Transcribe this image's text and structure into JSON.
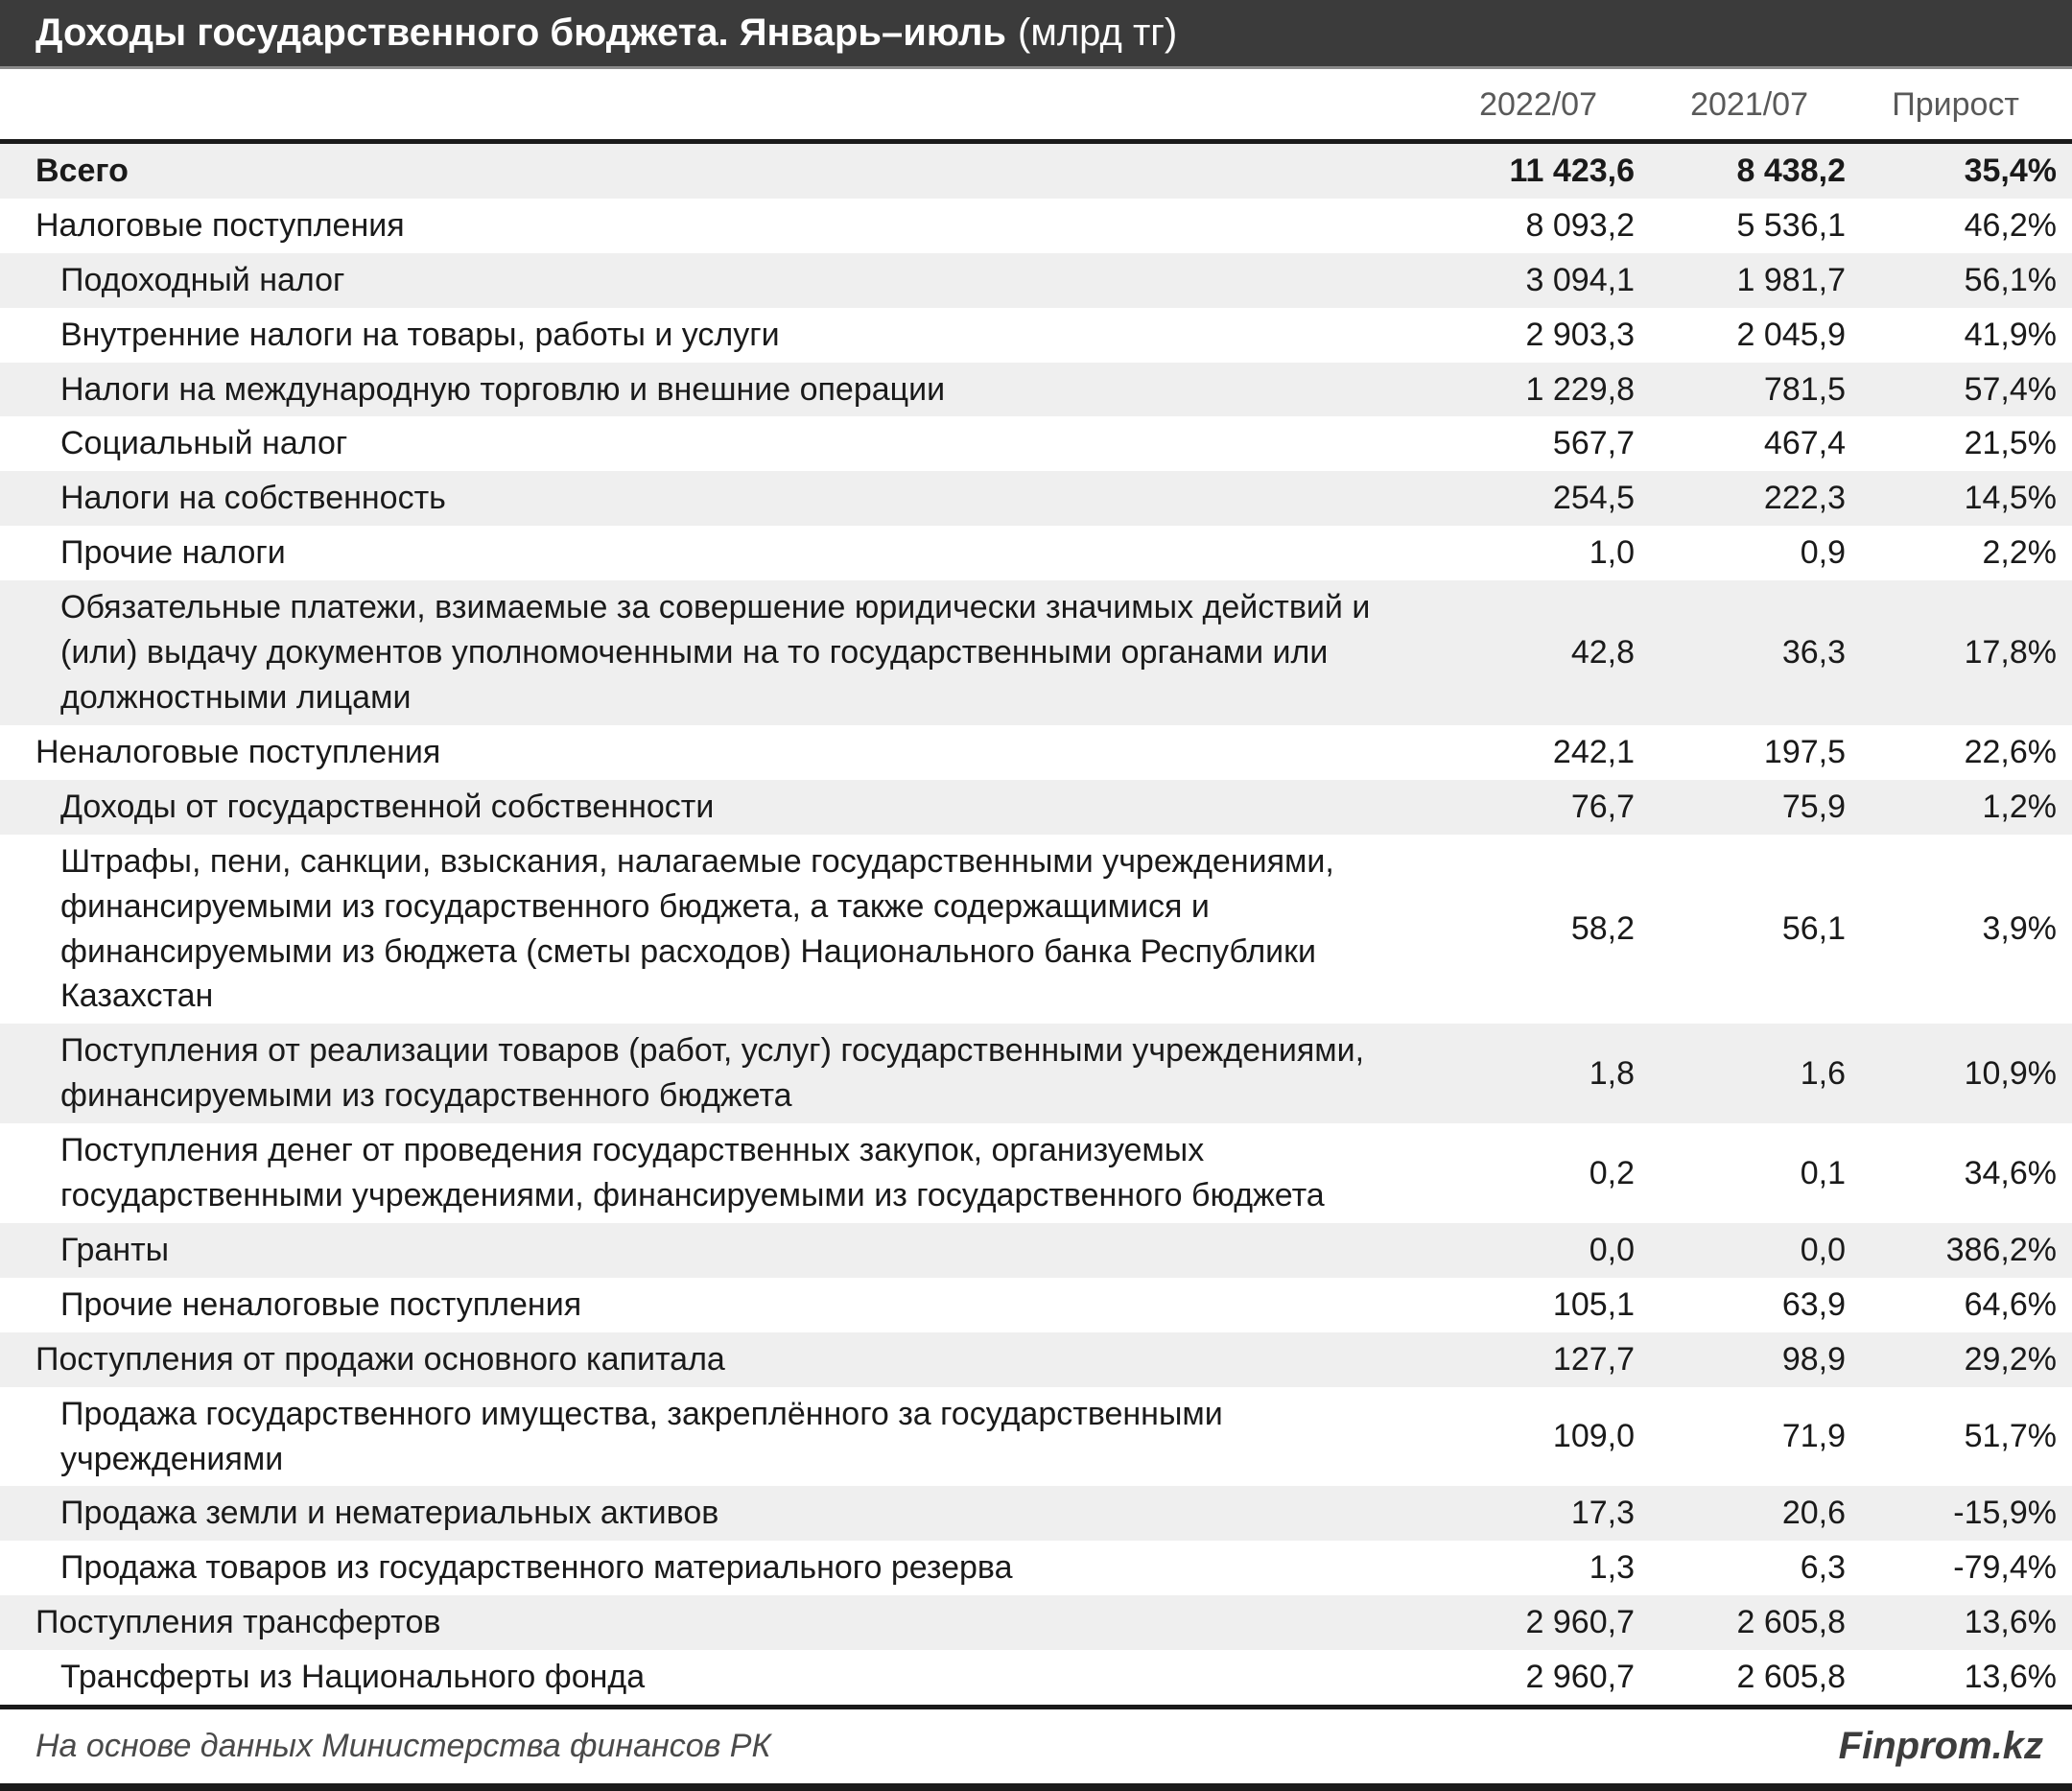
{
  "title": {
    "main": "Доходы государственного бюджета. Январь–июль",
    "unit": "(млрд тг)"
  },
  "footer": {
    "source": "На основе данных Министерства финансов РК",
    "brand": "Finprom.kz"
  },
  "chart_data": {
    "type": "table",
    "title": "Доходы государственного бюджета. Январь–июль (млрд тг)",
    "columns": [
      "2022/07",
      "2021/07",
      "Прирост"
    ],
    "rows": [
      {
        "label": "Всего",
        "values": [
          "11 423,6",
          "8 438,2",
          "35,4%"
        ],
        "values_num": [
          11423.6,
          8438.2,
          35.4
        ],
        "level": 0,
        "emphasis": true
      },
      {
        "label": "Налоговые поступления",
        "values": [
          "8 093,2",
          "5 536,1",
          "46,2%"
        ],
        "values_num": [
          8093.2,
          5536.1,
          46.2
        ],
        "level": 0,
        "emphasis": false
      },
      {
        "label": "Подоходный налог",
        "values": [
          "3 094,1",
          "1 981,7",
          "56,1%"
        ],
        "values_num": [
          3094.1,
          1981.7,
          56.1
        ],
        "level": 1,
        "emphasis": false
      },
      {
        "label": "Внутренние налоги на товары, работы и услуги",
        "values": [
          "2 903,3",
          "2 045,9",
          "41,9%"
        ],
        "values_num": [
          2903.3,
          2045.9,
          41.9
        ],
        "level": 1,
        "emphasis": false
      },
      {
        "label": "Налоги на международную торговлю и внешние операции",
        "values": [
          "1 229,8",
          "781,5",
          "57,4%"
        ],
        "values_num": [
          1229.8,
          781.5,
          57.4
        ],
        "level": 1,
        "emphasis": false
      },
      {
        "label": "Социальный налог",
        "values": [
          "567,7",
          "467,4",
          "21,5%"
        ],
        "values_num": [
          567.7,
          467.4,
          21.5
        ],
        "level": 1,
        "emphasis": false
      },
      {
        "label": "Налоги на собственность",
        "values": [
          "254,5",
          "222,3",
          "14,5%"
        ],
        "values_num": [
          254.5,
          222.3,
          14.5
        ],
        "level": 1,
        "emphasis": false
      },
      {
        "label": "Прочие налоги",
        "values": [
          "1,0",
          "0,9",
          "2,2%"
        ],
        "values_num": [
          1.0,
          0.9,
          2.2
        ],
        "level": 1,
        "emphasis": false
      },
      {
        "label": "Обязательные платежи, взимаемые за совершение юридически значимых действий и (или) выдачу документов уполномоченными на то государственными органами или должностными лицами",
        "values": [
          "42,8",
          "36,3",
          "17,8%"
        ],
        "values_num": [
          42.8,
          36.3,
          17.8
        ],
        "level": 1,
        "emphasis": false
      },
      {
        "label": "Неналоговые поступления",
        "values": [
          "242,1",
          "197,5",
          "22,6%"
        ],
        "values_num": [
          242.1,
          197.5,
          22.6
        ],
        "level": 0,
        "emphasis": false
      },
      {
        "label": "Доходы от государственной собственности",
        "values": [
          "76,7",
          "75,9",
          "1,2%"
        ],
        "values_num": [
          76.7,
          75.9,
          1.2
        ],
        "level": 1,
        "emphasis": false
      },
      {
        "label": "Штрафы, пени, санкции, взыскания, налагаемые государственными учреждениями, финансируемыми из государственного бюджета, а также содержащимися и финансируемыми из бюджета (сметы расходов) Национального банка Республики Казахстан",
        "values": [
          "58,2",
          "56,1",
          "3,9%"
        ],
        "values_num": [
          58.2,
          56.1,
          3.9
        ],
        "level": 1,
        "emphasis": false
      },
      {
        "label": "Поступления от реализации товаров (работ, услуг) государственными учреждениями, финансируемыми из государственного бюджета",
        "values": [
          "1,8",
          "1,6",
          "10,9%"
        ],
        "values_num": [
          1.8,
          1.6,
          10.9
        ],
        "level": 1,
        "emphasis": false
      },
      {
        "label": "Поступления денег от проведения государственных закупок, организуемых государственными учреждениями, финансируемыми из государственного бюджета",
        "values": [
          "0,2",
          "0,1",
          "34,6%"
        ],
        "values_num": [
          0.2,
          0.1,
          34.6
        ],
        "level": 1,
        "emphasis": false
      },
      {
        "label": "Гранты",
        "values": [
          "0,0",
          "0,0",
          "386,2%"
        ],
        "values_num": [
          0.0,
          0.0,
          386.2
        ],
        "level": 1,
        "emphasis": false
      },
      {
        "label": "Прочие неналоговые поступления",
        "values": [
          "105,1",
          "63,9",
          "64,6%"
        ],
        "values_num": [
          105.1,
          63.9,
          64.6
        ],
        "level": 1,
        "emphasis": false
      },
      {
        "label": "Поступления от продажи основного капитала",
        "values": [
          "127,7",
          "98,9",
          "29,2%"
        ],
        "values_num": [
          127.7,
          98.9,
          29.2
        ],
        "level": 0,
        "emphasis": false
      },
      {
        "label": "Продажа государственного имущества, закреплённого за государственными учреждениями",
        "values": [
          "109,0",
          "71,9",
          "51,7%"
        ],
        "values_num": [
          109.0,
          71.9,
          51.7
        ],
        "level": 1,
        "emphasis": false
      },
      {
        "label": "Продажа земли и нематериальных активов",
        "values": [
          "17,3",
          "20,6",
          "-15,9%"
        ],
        "values_num": [
          17.3,
          20.6,
          -15.9
        ],
        "level": 1,
        "emphasis": false
      },
      {
        "label": "Продажа товаров из государственного материального резерва",
        "values": [
          "1,3",
          "6,3",
          "-79,4%"
        ],
        "values_num": [
          1.3,
          6.3,
          -79.4
        ],
        "level": 1,
        "emphasis": false
      },
      {
        "label": "Поступления трансфертов",
        "values": [
          "2 960,7",
          "2 605,8",
          "13,6%"
        ],
        "values_num": [
          2960.7,
          2605.8,
          13.6
        ],
        "level": 0,
        "emphasis": false
      },
      {
        "label": "Трансферты из Национального фонда",
        "values": [
          "2 960,7",
          "2 605,8",
          "13,6%"
        ],
        "values_num": [
          2960.7,
          2605.8,
          13.6
        ],
        "level": 1,
        "emphasis": false
      }
    ]
  }
}
